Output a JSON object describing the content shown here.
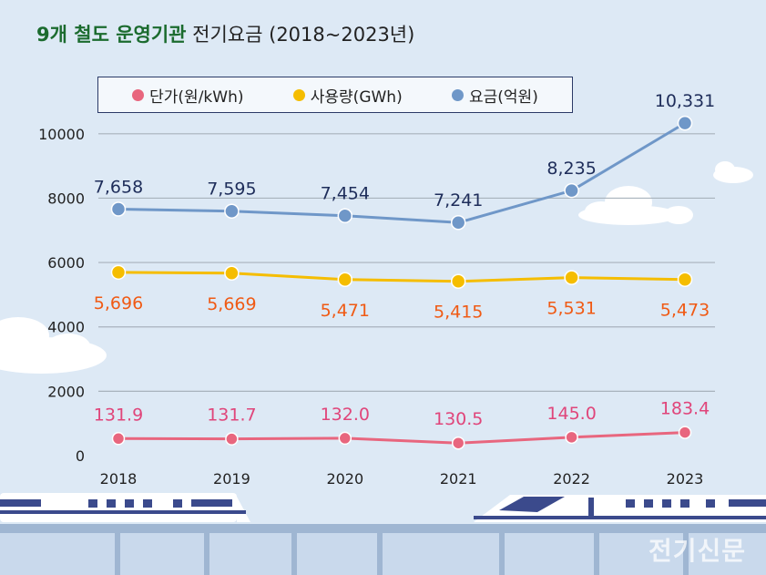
{
  "title_bold": "9개 철도 운영기관",
  "title_rest": "전기요금 (2018~2023년)",
  "watermark": "전기신문",
  "colors": {
    "background": "#dde9f5",
    "unit_price": "#e8667e",
    "usage": "#f5bd00",
    "fee": "#6f97c8",
    "fee_label": "#1e2d5a",
    "usage_label": "#f05a14",
    "price_label": "#e0457a",
    "grid": "#a8b2bc",
    "title_bold": "#1b6b2e"
  },
  "chart_data": {
    "type": "line",
    "title": "9개 철도 운영기관 전기요금 (2018~2023년)",
    "categories": [
      "2018",
      "2019",
      "2020",
      "2021",
      "2022",
      "2023"
    ],
    "ylim": [
      0,
      10000
    ],
    "yticks": [
      "0",
      "2000",
      "4000",
      "6000",
      "8000",
      "10000"
    ],
    "legend_position": "top",
    "series": [
      {
        "key": "unit_price",
        "name": "단가(원/kWh)",
        "values": [
          131.9,
          131.7,
          132.0,
          130.5,
          145.0,
          183.4
        ],
        "plotted": [
          530,
          520,
          540,
          390,
          570,
          720
        ],
        "labels": [
          "131.9",
          "131.7",
          "132.0",
          "130.5",
          "145.0",
          "183.4"
        ]
      },
      {
        "key": "usage",
        "name": "사용량(GWh)",
        "values": [
          5696,
          5669,
          5471,
          5415,
          5531,
          5473
        ],
        "labels": [
          "5,696",
          "5,669",
          "5,471",
          "5,415",
          "5,531",
          "5,473"
        ]
      },
      {
        "key": "fee",
        "name": "요금(억원)",
        "values": [
          7658,
          7595,
          7454,
          7241,
          8235,
          10331
        ],
        "labels": [
          "7,658",
          "7,595",
          "7,454",
          "7,241",
          "8,235",
          "10,331"
        ]
      }
    ]
  }
}
